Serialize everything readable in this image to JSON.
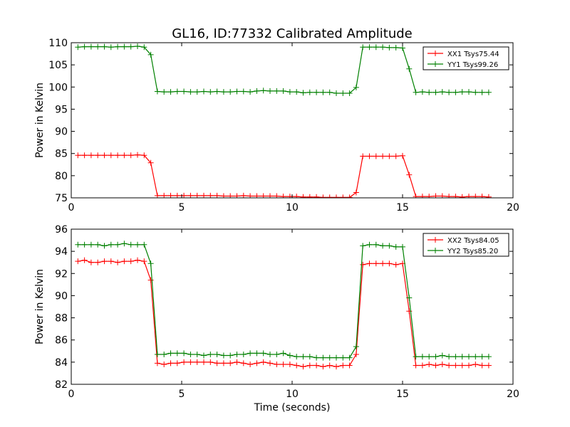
{
  "title": "GL16, ID:77332 Calibrated Amplitude",
  "chart_data": [
    {
      "type": "line",
      "ylabel": "Power in Kelvin",
      "xlabel": "",
      "xlim": [
        0,
        20
      ],
      "ylim": [
        75,
        110
      ],
      "xticks": [
        "0",
        "5",
        "10",
        "15",
        "20"
      ],
      "yticks": [
        "75",
        "80",
        "85",
        "90",
        "95",
        "100",
        "105",
        "110"
      ],
      "grid": false,
      "legend_position": "top-right",
      "x": [
        0.3,
        0.6,
        0.9,
        1.2,
        1.5,
        1.8,
        2.1,
        2.4,
        2.7,
        3.0,
        3.3,
        3.6,
        3.9,
        4.2,
        4.5,
        4.8,
        5.1,
        5.4,
        5.7,
        6.0,
        6.3,
        6.6,
        6.9,
        7.2,
        7.5,
        7.8,
        8.1,
        8.4,
        8.7,
        9.0,
        9.3,
        9.6,
        9.9,
        10.2,
        10.5,
        10.8,
        11.1,
        11.4,
        11.7,
        12.0,
        12.3,
        12.6,
        12.9,
        13.2,
        13.5,
        13.8,
        14.1,
        14.4,
        14.7,
        15.0,
        15.3,
        15.6,
        15.9,
        16.2,
        16.5,
        16.8,
        17.1,
        17.4,
        17.7,
        18.0,
        18.3,
        18.6,
        18.9
      ],
      "series": [
        {
          "name": "XX1 Tsys75.44",
          "color": "#ff0000",
          "values": [
            84.6,
            84.6,
            84.6,
            84.6,
            84.6,
            84.6,
            84.6,
            84.6,
            84.6,
            84.7,
            84.6,
            82.9,
            75.5,
            75.5,
            75.5,
            75.5,
            75.5,
            75.5,
            75.5,
            75.5,
            75.5,
            75.5,
            75.4,
            75.4,
            75.4,
            75.5,
            75.4,
            75.4,
            75.4,
            75.4,
            75.4,
            75.3,
            75.3,
            75.3,
            75.2,
            75.2,
            75.2,
            75.1,
            75.1,
            75.1,
            75.1,
            75.1,
            76.2,
            84.4,
            84.4,
            84.4,
            84.4,
            84.4,
            84.4,
            84.5,
            80.2,
            75.3,
            75.3,
            75.3,
            75.4,
            75.4,
            75.3,
            75.3,
            75.2,
            75.3,
            75.3,
            75.3,
            75.2
          ]
        },
        {
          "name": "YY1 Tsys99.26",
          "color": "#008000",
          "values": [
            109.0,
            109.1,
            109.1,
            109.1,
            109.1,
            109.0,
            109.1,
            109.1,
            109.1,
            109.2,
            109.0,
            107.3,
            99.0,
            98.9,
            98.9,
            99.0,
            99.0,
            98.9,
            98.9,
            99.0,
            98.9,
            99.0,
            98.9,
            98.9,
            99.0,
            99.0,
            98.9,
            99.1,
            99.2,
            99.1,
            99.1,
            99.1,
            98.9,
            98.9,
            98.7,
            98.8,
            98.8,
            98.8,
            98.8,
            98.6,
            98.6,
            98.6,
            99.9,
            109.0,
            109.0,
            109.0,
            109.0,
            108.9,
            108.9,
            108.8,
            104.1,
            98.8,
            98.9,
            98.8,
            98.8,
            98.9,
            98.8,
            98.8,
            98.9,
            98.9,
            98.8,
            98.8,
            98.8
          ]
        }
      ]
    },
    {
      "type": "line",
      "ylabel": "Power in Kelvin",
      "xlabel": "Time (seconds)",
      "xlim": [
        0,
        20
      ],
      "ylim": [
        82,
        96
      ],
      "xticks": [
        "0",
        "5",
        "10",
        "15",
        "20"
      ],
      "yticks": [
        "82",
        "84",
        "86",
        "88",
        "90",
        "92",
        "94",
        "96"
      ],
      "grid": false,
      "legend_position": "top-right",
      "x": [
        0.3,
        0.6,
        0.9,
        1.2,
        1.5,
        1.8,
        2.1,
        2.4,
        2.7,
        3.0,
        3.3,
        3.6,
        3.9,
        4.2,
        4.5,
        4.8,
        5.1,
        5.4,
        5.7,
        6.0,
        6.3,
        6.6,
        6.9,
        7.2,
        7.5,
        7.8,
        8.1,
        8.4,
        8.7,
        9.0,
        9.3,
        9.6,
        9.9,
        10.2,
        10.5,
        10.8,
        11.1,
        11.4,
        11.7,
        12.0,
        12.3,
        12.6,
        12.9,
        13.2,
        13.5,
        13.8,
        14.1,
        14.4,
        14.7,
        15.0,
        15.3,
        15.6,
        15.9,
        16.2,
        16.5,
        16.8,
        17.1,
        17.4,
        17.7,
        18.0,
        18.3,
        18.6,
        18.9
      ],
      "series": [
        {
          "name": "XX2 Tsys84.05",
          "color": "#ff0000",
          "values": [
            93.1,
            93.2,
            93.0,
            93.0,
            93.1,
            93.1,
            93.0,
            93.1,
            93.1,
            93.2,
            93.1,
            91.4,
            83.9,
            83.8,
            83.9,
            83.9,
            84.0,
            84.0,
            84.0,
            84.0,
            84.0,
            83.9,
            83.9,
            83.9,
            84.0,
            83.9,
            83.8,
            83.9,
            84.0,
            83.9,
            83.8,
            83.8,
            83.8,
            83.7,
            83.6,
            83.7,
            83.7,
            83.6,
            83.7,
            83.6,
            83.7,
            83.7,
            84.7,
            92.8,
            92.9,
            92.9,
            92.9,
            92.9,
            92.8,
            92.9,
            88.6,
            83.7,
            83.7,
            83.8,
            83.7,
            83.8,
            83.7,
            83.7,
            83.7,
            83.7,
            83.8,
            83.7,
            83.7
          ]
        },
        {
          "name": "YY2 Tsys85.20",
          "color": "#008000",
          "values": [
            94.6,
            94.6,
            94.6,
            94.6,
            94.5,
            94.6,
            94.6,
            94.7,
            94.6,
            94.6,
            94.6,
            92.9,
            84.7,
            84.7,
            84.8,
            84.8,
            84.8,
            84.7,
            84.7,
            84.6,
            84.7,
            84.7,
            84.6,
            84.6,
            84.7,
            84.7,
            84.8,
            84.8,
            84.8,
            84.7,
            84.7,
            84.8,
            84.6,
            84.5,
            84.5,
            84.5,
            84.4,
            84.4,
            84.4,
            84.4,
            84.4,
            84.4,
            85.4,
            94.5,
            94.6,
            94.6,
            94.5,
            94.5,
            94.4,
            94.4,
            89.8,
            84.5,
            84.5,
            84.5,
            84.5,
            84.6,
            84.5,
            84.5,
            84.5,
            84.5,
            84.5,
            84.5,
            84.5
          ]
        }
      ]
    }
  ]
}
